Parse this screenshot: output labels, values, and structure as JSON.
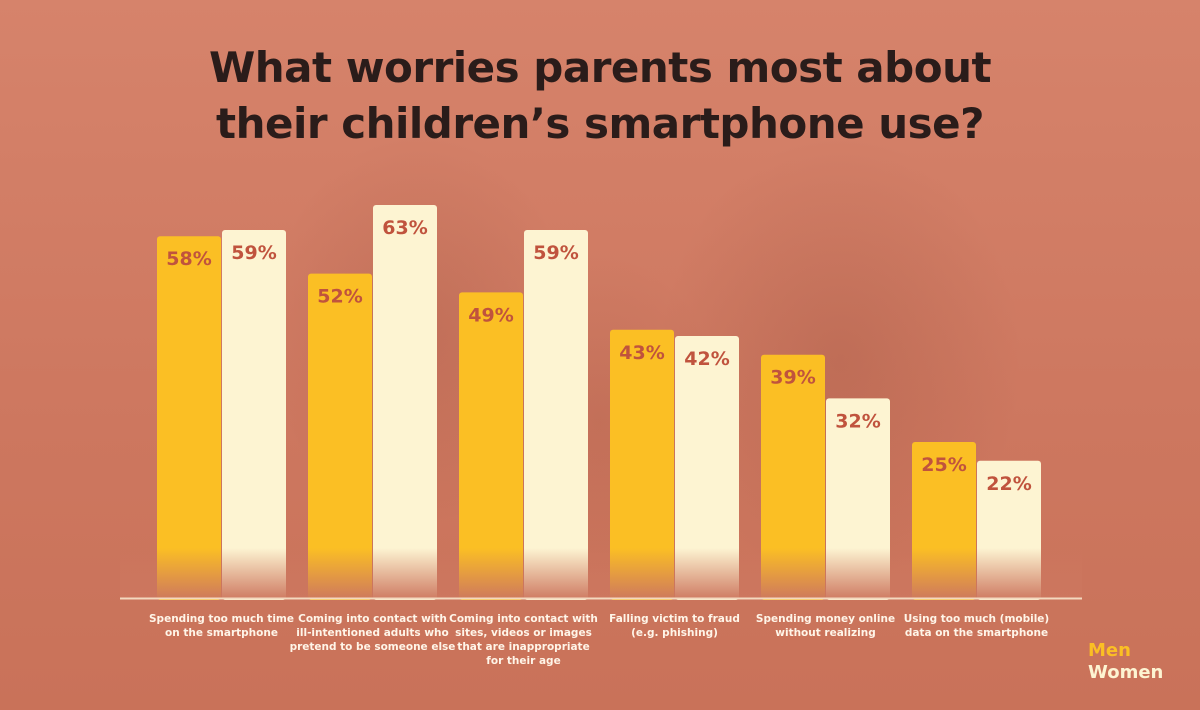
{
  "title": "What worries parents most about their children’s smartphone use?",
  "colors": {
    "men": "#fbbf24",
    "women": "#fdf4d2",
    "value_text": "#c0533d",
    "category_text": "#fff5e8",
    "title": "#2a1c1a"
  },
  "legend": {
    "men": "Men",
    "women": "Women"
  },
  "chart_data": {
    "type": "bar",
    "title": "What worries parents most about their children’s smartphone use?",
    "categories": [
      [
        "Spending too much time",
        "on the smartphone"
      ],
      [
        "Coming into contact with",
        "ill-intentioned adults who",
        "pretend to be someone else"
      ],
      [
        "Coming into contact with",
        "sites, videos or images",
        "that are inappropriate",
        "for their age"
      ],
      [
        "Falling victim to fraud",
        "(e.g. phishing)"
      ],
      [
        "Spending money online",
        "without realizing"
      ],
      [
        "Using too much (mobile)",
        "data on the smartphone"
      ]
    ],
    "series": [
      {
        "name": "Men",
        "values": [
          58,
          52,
          49,
          43,
          39,
          25
        ]
      },
      {
        "name": "Women",
        "values": [
          59,
          63,
          59,
          42,
          32,
          22
        ]
      }
    ],
    "value_suffix": "%",
    "xlabel": "",
    "ylabel": "",
    "ylim": [
      0,
      63
    ],
    "grid": false,
    "legend_position": "bottom-right"
  }
}
